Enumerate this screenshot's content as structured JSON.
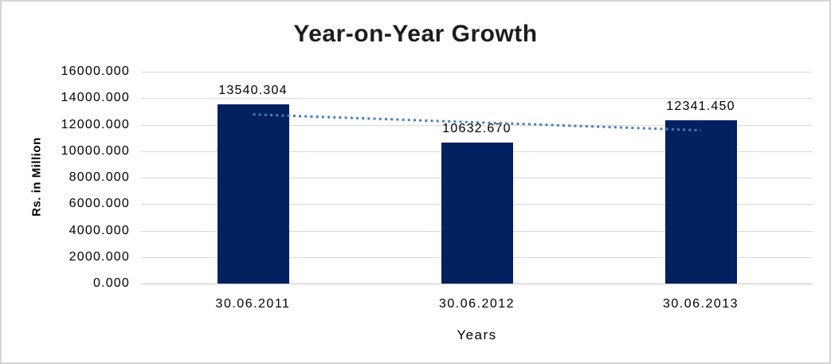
{
  "chart_data": {
    "type": "bar",
    "title": "Year-on-Year Growth",
    "xlabel": "Years",
    "ylabel": "Rs. in Million",
    "categories": [
      "30.06.2011",
      "30.06.2012",
      "30.06.2013"
    ],
    "values": [
      13540.304,
      10632.67,
      12341.45
    ],
    "data_labels": [
      "13540.304",
      "10632.670",
      "12341.450"
    ],
    "ylim": [
      0,
      16000
    ],
    "ytick_step": 2000,
    "ytick_labels": [
      "0.000",
      "2000.000",
      "4000.000",
      "6000.000",
      "8000.000",
      "10000.000",
      "12000.000",
      "14000.000",
      "16000.000"
    ],
    "grid": true,
    "legend": "none",
    "trendline": {
      "type": "linear",
      "style": "dotted"
    }
  },
  "colors": {
    "bar": "#032060",
    "trendline": "#4a7ebb",
    "gridline": "#d9d9d9",
    "title_text": "#1c1c1c",
    "text": "#000000"
  }
}
